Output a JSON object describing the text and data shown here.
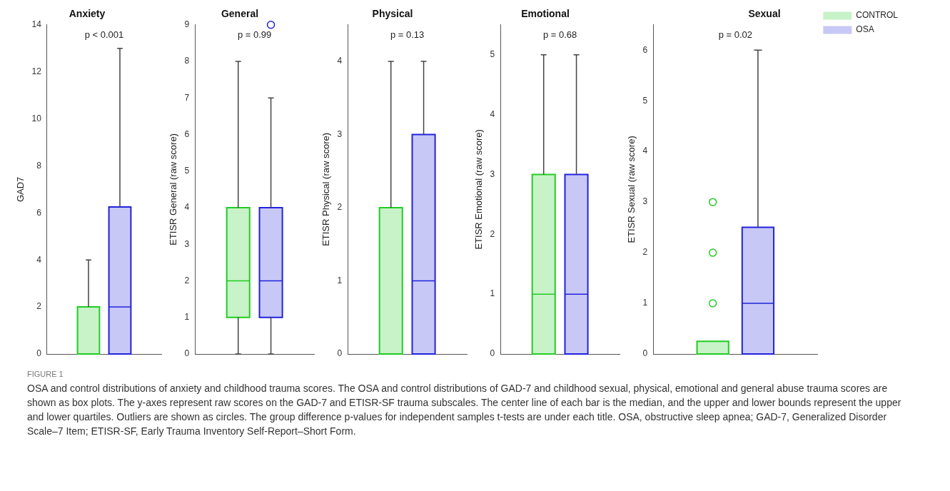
{
  "chart_data": [
    {
      "type": "box",
      "title": "Anxiety",
      "ylabel": "GAD7",
      "annotations": [
        "p < 0.001"
      ],
      "categories": [
        null
      ],
      "ylim": [
        0,
        14
      ],
      "yticks": [
        0,
        2,
        4,
        6,
        8,
        10,
        12,
        14
      ],
      "legend": false,
      "series": [
        {
          "color": "#22cc22",
          "boxes": [
            {
              "low": 0,
              "q1": 0,
              "median": 0,
              "q3": 2,
              "high": 4
            }
          ]
        },
        {
          "color": "#2222dd",
          "boxes": [
            {
              "low": 0,
              "q1": 0,
              "median": 2,
              "q3": 6.25,
              "high": 13
            }
          ]
        }
      ]
    },
    {
      "type": "box",
      "title": "General",
      "ylabel": "ETISR General (raw score)",
      "annotations": [
        "p = 0.99"
      ],
      "categories": [
        null
      ],
      "ylim": [
        0,
        9
      ],
      "yticks": [
        0,
        1,
        2,
        3,
        4,
        5,
        6,
        7,
        8,
        9
      ],
      "legend": false,
      "series": [
        {
          "color": "#22cc22",
          "boxes": [
            {
              "low": 0,
              "q1": 1,
              "median": 2,
              "q3": 4,
              "high": 8
            }
          ]
        },
        {
          "color": "#2222dd",
          "boxes": [
            {
              "low": 0,
              "q1": 1,
              "median": 2,
              "q3": 4,
              "high": 7,
              "outliers": [
                9
              ]
            }
          ]
        }
      ]
    },
    {
      "type": "box",
      "title": "Physical",
      "ylabel": "ETISR Physical (raw score)",
      "annotations": [
        "p = 0.13"
      ],
      "categories": [
        null
      ],
      "ylim": [
        0,
        4.5
      ],
      "yticks": [
        0,
        1,
        2,
        3,
        4
      ],
      "legend": false,
      "series": [
        {
          "color": "#22cc22",
          "boxes": [
            {
              "low": 0,
              "q1": 0,
              "median": 0,
              "q3": 2,
              "high": 4
            }
          ]
        },
        {
          "color": "#2222dd",
          "boxes": [
            {
              "low": 0,
              "q1": 0,
              "median": 1,
              "q3": 3,
              "high": 4
            }
          ]
        }
      ]
    },
    {
      "type": "box",
      "title": "Emotional",
      "ylabel": "ETISR Emotional (raw score)",
      "annotations": [
        "p = 0.68"
      ],
      "categories": [
        null
      ],
      "ylim": [
        0,
        5.5
      ],
      "yticks": [
        0,
        1,
        2,
        3,
        4,
        5
      ],
      "legend": false,
      "series": [
        {
          "color": "#22cc22",
          "boxes": [
            {
              "low": 0,
              "q1": 0,
              "median": 1,
              "q3": 3,
              "high": 5
            }
          ]
        },
        {
          "color": "#2222dd",
          "boxes": [
            {
              "low": 0,
              "q1": 0,
              "median": 1,
              "q3": 3,
              "high": 5
            }
          ]
        }
      ]
    },
    {
      "type": "box",
      "title": "Sexual",
      "ylabel": "ETISR Sexual (raw score)",
      "annotations": [
        "p = 0.02"
      ],
      "categories": [
        null
      ],
      "ylim": [
        0,
        6.5
      ],
      "yticks": [
        0,
        1,
        2,
        3,
        4,
        5,
        6
      ],
      "legend": "top right",
      "series": [
        {
          "name": "CONTROL",
          "color": "#22cc22",
          "boxes": [
            {
              "low": 0,
              "q1": 0,
              "median": 0,
              "q3": 0.25,
              "high": 0.25,
              "outliers": [
                1,
                2,
                3
              ]
            }
          ]
        },
        {
          "name": "OSA",
          "color": "#2222dd",
          "boxes": [
            {
              "low": 0,
              "q1": 0,
              "median": 1,
              "q3": 2.5,
              "high": 6
            }
          ]
        }
      ]
    },
    {
      "type": "other",
      "annotations": [
        "FIGURE 1",
        "OSA and control distributions of anxiety and childhood trauma scores. The OSA and control distributions of GAD-7 and childhood sexual, physical, emotional and general abuse trauma scores are shown as box plots. The y-axes represent raw scores on the GAD-7 and ETISR-SF trauma subscales. The center line of each bar is the median, and the upper and lower bounds represent the upper and lower quartiles. Outliers are shown as circles. The group difference p-values for independent samples t-tests are under each title. OSA, obstructive sleep apnea; GAD-7, Generalized Disorder Scale–7 Item; ETISR-SF, Early Trauma Inventory Self-Report–Short Form."
      ]
    }
  ]
}
